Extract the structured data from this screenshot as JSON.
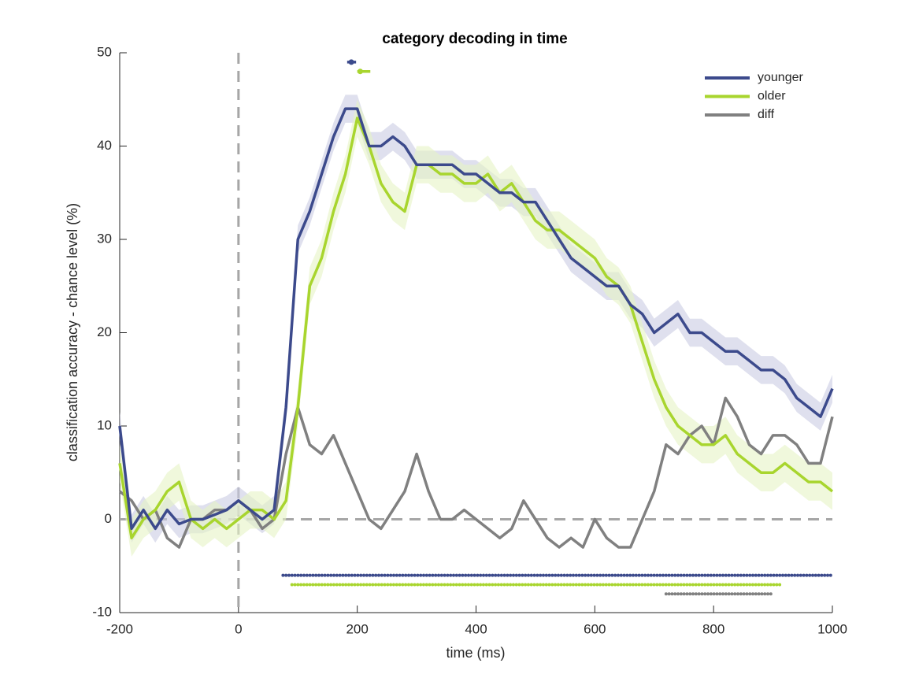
{
  "chart_data": {
    "type": "line",
    "title": "category decoding in time",
    "x_label": "time (ms)",
    "y_label": "classification accuracy - chance level (%)",
    "x": [
      -200,
      -180,
      -160,
      -140,
      -120,
      -100,
      -80,
      -60,
      -40,
      -20,
      0,
      20,
      40,
      60,
      80,
      100,
      120,
      140,
      160,
      180,
      200,
      220,
      240,
      260,
      280,
      300,
      320,
      340,
      360,
      380,
      400,
      420,
      440,
      460,
      480,
      500,
      520,
      540,
      560,
      580,
      600,
      620,
      640,
      660,
      680,
      700,
      720,
      740,
      760,
      780,
      800,
      820,
      840,
      860,
      880,
      900,
      920,
      940,
      960,
      980,
      1000
    ],
    "series": [
      {
        "name": "younger",
        "color": "#3c4a8c",
        "band_color": "#c9cce3",
        "error": 1.5,
        "values": [
          10,
          -1,
          1,
          -1,
          1,
          -0.5,
          0,
          0,
          0.5,
          1,
          2,
          1,
          0,
          1,
          12,
          30,
          33,
          37,
          41,
          44,
          44,
          40,
          40,
          41,
          40,
          38,
          38,
          38,
          38,
          37,
          37,
          36,
          35,
          35,
          34,
          34,
          32,
          30,
          28,
          27,
          26,
          25,
          25,
          23,
          22,
          20,
          21,
          22,
          20,
          20,
          19,
          18,
          18,
          17,
          16,
          16,
          15,
          13,
          12,
          11,
          14
        ]
      },
      {
        "name": "older",
        "color": "#a8d52e",
        "band_color": "#e6f3c4",
        "error": 2,
        "values": [
          6,
          -2,
          0,
          1,
          3,
          4,
          0,
          -1,
          0,
          -1,
          0,
          1,
          1,
          0,
          2,
          12,
          25,
          28,
          33,
          37,
          43,
          40,
          36,
          34,
          33,
          38,
          38,
          37,
          37,
          36,
          36,
          37,
          35,
          36,
          34,
          32,
          31,
          31,
          30,
          29,
          28,
          26,
          25,
          23,
          19,
          15,
          12,
          10,
          9,
          8,
          8,
          9,
          7,
          6,
          5,
          5,
          6,
          5,
          4,
          4,
          3
        ]
      },
      {
        "name": "diff",
        "color": "#808080",
        "values": [
          3,
          2,
          0,
          1,
          -2,
          -3,
          0,
          0,
          1,
          1,
          2,
          1,
          -1,
          0,
          7,
          12,
          8,
          7,
          9,
          6,
          3,
          0,
          -1,
          1,
          3,
          7,
          3,
          0,
          0,
          1,
          0,
          -1,
          -2,
          -1,
          2,
          0,
          -2,
          -3,
          -2,
          -3,
          0,
          -2,
          -3,
          -3,
          0,
          3,
          8,
          7,
          9,
          10,
          8,
          13,
          11,
          8,
          7,
          9,
          9,
          8,
          6,
          6,
          11
        ]
      }
    ],
    "significance": [
      {
        "series": 0,
        "range": [
          75,
          1000
        ],
        "y": -6
      },
      {
        "series": 1,
        "range": [
          90,
          915
        ],
        "y": -7
      },
      {
        "series": 2,
        "range": [
          720,
          900
        ],
        "y": -8
      }
    ],
    "peaks": [
      {
        "series": 0,
        "x": 190,
        "range": [
          183,
          198
        ],
        "y": 49
      },
      {
        "series": 1,
        "x": 205,
        "range": [
          200,
          222
        ],
        "y": 48
      }
    ],
    "hlines": [
      0
    ],
    "vlines": [
      0
    ],
    "xlim": [
      -200,
      1000
    ],
    "xticks": [
      -200,
      0,
      200,
      400,
      600,
      800,
      1000
    ],
    "ylim": [
      -10,
      50
    ],
    "yticks": [
      -10,
      0,
      10,
      20,
      30,
      40,
      50
    ],
    "legend": "top-right"
  }
}
